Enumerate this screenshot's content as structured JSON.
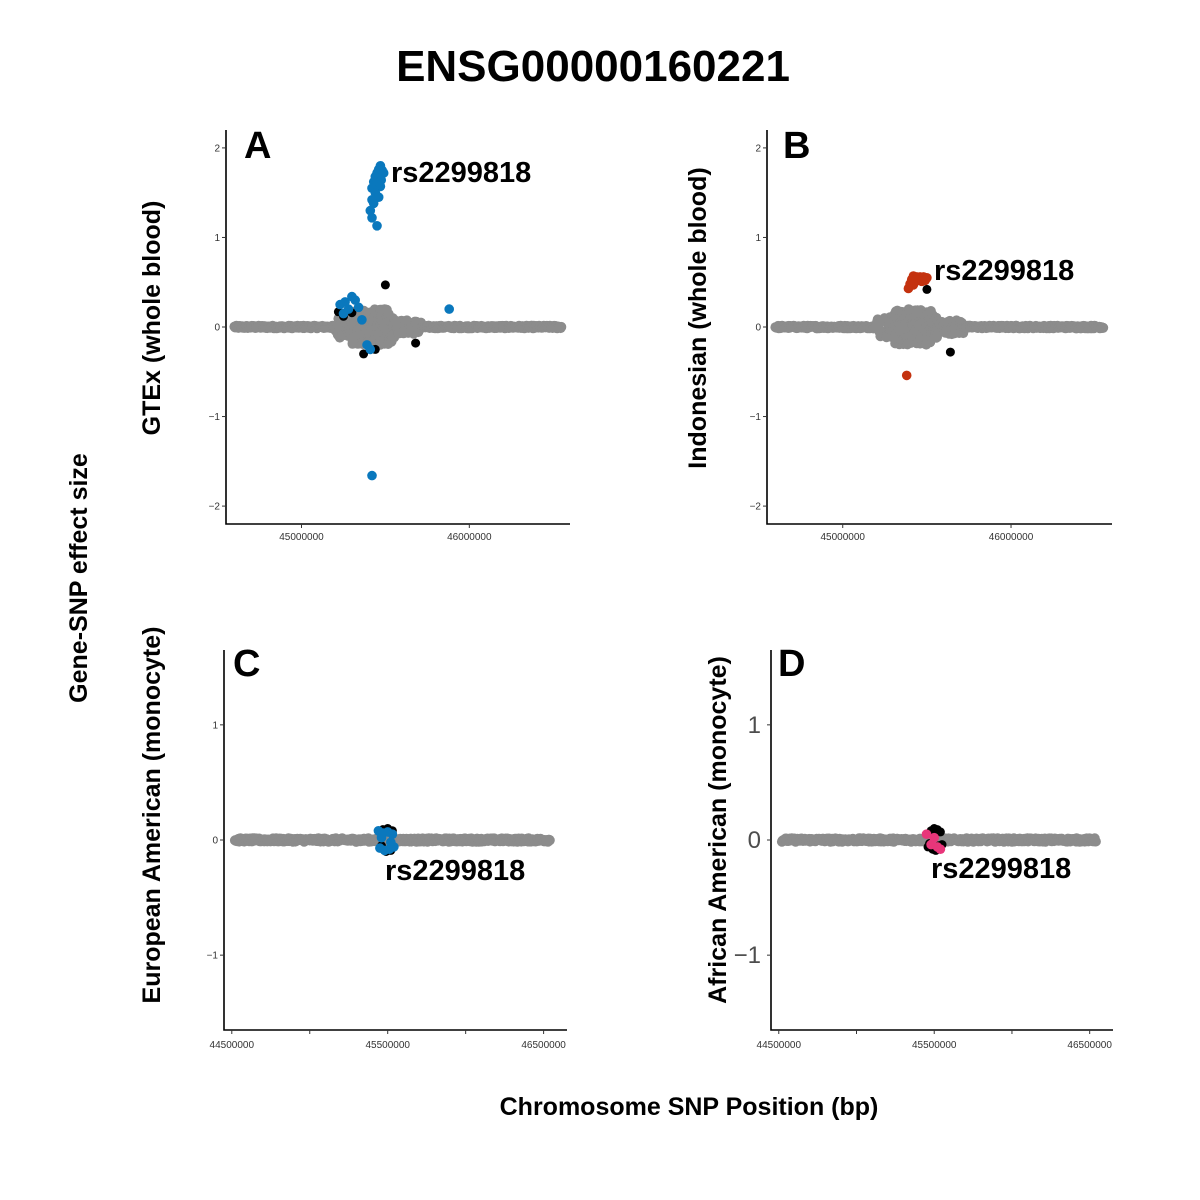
{
  "title": "ENSG00000160221",
  "common_y_label": "Gene-SNP effect size",
  "common_x_label": "Chromosome SNP Position (bp)",
  "colors": {
    "background_snp": "#8c8c8c",
    "other": "#000000",
    "gtex": "#0a78bd",
    "indonesian": "#c4320f",
    "european_american": "#0a78bd",
    "african_american": "#e8367a"
  },
  "chart_data": [
    {
      "panel": "A",
      "type": "scatter",
      "ylabel": "GTEx (whole blood)",
      "annotation": "rs2299818",
      "xlim": [
        44550000,
        46600000
      ],
      "ylim": [
        -2.2,
        2.2
      ],
      "x_ticks": [
        45000000,
        46000000
      ],
      "x_tick_labels": [
        "45000000",
        "46000000"
      ],
      "y_ticks": [
        -2,
        -1,
        0,
        1,
        2
      ],
      "y_tick_labels": [
        "−2",
        "−1",
        "0",
        "1",
        "2"
      ],
      "grid": false,
      "background_region": [
        44600000,
        46550000
      ],
      "highlight_color": "#0a78bd",
      "highlight_points": [
        [
          45470000,
          1.8
        ],
        [
          45460000,
          1.76
        ],
        [
          45480000,
          1.75
        ],
        [
          45450000,
          1.72
        ],
        [
          45490000,
          1.72
        ],
        [
          45440000,
          1.68
        ],
        [
          45460000,
          1.66
        ],
        [
          45475000,
          1.64
        ],
        [
          45430000,
          1.62
        ],
        [
          45450000,
          1.6
        ],
        [
          45470000,
          1.57
        ],
        [
          45420000,
          1.55
        ],
        [
          45440000,
          1.5
        ],
        [
          45460000,
          1.45
        ],
        [
          45420000,
          1.42
        ],
        [
          45430000,
          1.38
        ],
        [
          45410000,
          1.3
        ],
        [
          45420000,
          1.22
        ],
        [
          45450000,
          1.13
        ],
        [
          45300000,
          0.34
        ],
        [
          45260000,
          0.28
        ],
        [
          45320000,
          0.3
        ],
        [
          45230000,
          0.25
        ],
        [
          45280000,
          0.2
        ],
        [
          45340000,
          0.22
        ],
        [
          45250000,
          0.15
        ],
        [
          45360000,
          0.08
        ],
        [
          45390000,
          -0.2
        ],
        [
          45410000,
          -0.25
        ],
        [
          45880000,
          0.2
        ],
        [
          45420000,
          -1.66
        ]
      ],
      "other_points": [
        [
          45500000,
          0.47
        ],
        [
          45220000,
          0.17
        ],
        [
          45300000,
          0.16
        ],
        [
          45250000,
          0.12
        ],
        [
          45370000,
          -0.3
        ],
        [
          45440000,
          -0.25
        ],
        [
          45680000,
          -0.18
        ]
      ]
    },
    {
      "panel": "B",
      "type": "scatter",
      "ylabel": "Indonesian (whole blood)",
      "annotation": "rs2299818",
      "xlim": [
        44550000,
        46600000
      ],
      "ylim": [
        -2.2,
        2.2
      ],
      "x_ticks": [
        45000000,
        46000000
      ],
      "x_tick_labels": [
        "45000000",
        "46000000"
      ],
      "y_ticks": [
        -2,
        -1,
        0,
        1,
        2
      ],
      "y_tick_labels": [
        "−2",
        "−1",
        "0",
        "1",
        "2"
      ],
      "grid": false,
      "background_region": [
        44600000,
        46550000
      ],
      "highlight_color": "#c4320f",
      "highlight_points": [
        [
          45420000,
          0.57
        ],
        [
          45440000,
          0.56
        ],
        [
          45460000,
          0.56
        ],
        [
          45480000,
          0.56
        ],
        [
          45500000,
          0.55
        ],
        [
          45410000,
          0.53
        ],
        [
          45430000,
          0.52
        ],
        [
          45450000,
          0.52
        ],
        [
          45470000,
          0.51
        ],
        [
          45490000,
          0.52
        ],
        [
          45400000,
          0.48
        ],
        [
          45420000,
          0.47
        ],
        [
          45390000,
          0.43
        ],
        [
          45380000,
          -0.54
        ]
      ],
      "other_points": [
        [
          45500000,
          0.42
        ],
        [
          45640000,
          -0.28
        ]
      ]
    },
    {
      "panel": "C",
      "type": "scatter",
      "ylabel": "European American (monocyte)",
      "annotation": "rs2299818",
      "xlim": [
        44450000,
        46650000
      ],
      "ylim": [
        -1.65,
        1.65
      ],
      "x_ticks": [
        44500000,
        45000000,
        45500000,
        46000000,
        46500000
      ],
      "x_tick_labels": [
        "44500000",
        "",
        "45500000",
        "",
        "46500000"
      ],
      "y_ticks": [
        -1,
        0,
        1
      ],
      "y_tick_labels": [
        "−1",
        "0",
        "1"
      ],
      "grid": false,
      "background_region": [
        44520000,
        46540000
      ],
      "highlight_color": "#0a78bd",
      "highlight_points": [
        [
          45440000,
          0.08
        ],
        [
          45470000,
          0.06
        ],
        [
          45500000,
          0.07
        ],
        [
          45530000,
          0.05
        ],
        [
          45450000,
          -0.07
        ],
        [
          45480000,
          -0.09
        ],
        [
          45510000,
          -0.08
        ],
        [
          45540000,
          -0.06
        ],
        [
          45460000,
          0.02
        ],
        [
          45520000,
          -0.02
        ]
      ],
      "other_points": [
        [
          45470000,
          0.09
        ],
        [
          45500000,
          0.1
        ],
        [
          45530000,
          0.08
        ],
        [
          45490000,
          -0.1
        ],
        [
          45520000,
          -0.09
        ],
        [
          45460000,
          -0.05
        ]
      ]
    },
    {
      "panel": "D",
      "type": "scatter",
      "ylabel": "African American (monocyte)",
      "annotation": "rs2299818",
      "xlim": [
        44450000,
        46650000
      ],
      "ylim": [
        -1.65,
        1.65
      ],
      "x_ticks": [
        44500000,
        45000000,
        45500000,
        46000000,
        46500000
      ],
      "x_tick_labels": [
        "44500000",
        "",
        "45500000",
        "",
        "46500000"
      ],
      "y_ticks": [
        -1,
        0,
        1
      ],
      "y_tick_labels": [
        "−1",
        "0",
        "1"
      ],
      "grid": false,
      "background_region": [
        44520000,
        46540000
      ],
      "highlight_color": "#e8367a",
      "highlight_points": [
        [
          45450000,
          0.05
        ],
        [
          45520000,
          -0.06
        ],
        [
          45480000,
          -0.04
        ],
        [
          45540000,
          -0.08
        ],
        [
          45500000,
          0.02
        ]
      ],
      "other_points": [
        [
          45480000,
          0.08
        ],
        [
          45500000,
          0.1
        ],
        [
          45520000,
          0.09
        ],
        [
          45540000,
          0.07
        ],
        [
          45460000,
          -0.06
        ],
        [
          45490000,
          -0.08
        ],
        [
          45510000,
          -0.09
        ],
        [
          45530000,
          -0.05
        ],
        [
          45470000,
          -0.03
        ],
        [
          45550000,
          -0.04
        ],
        [
          45500000,
          -0.07
        ]
      ]
    }
  ]
}
